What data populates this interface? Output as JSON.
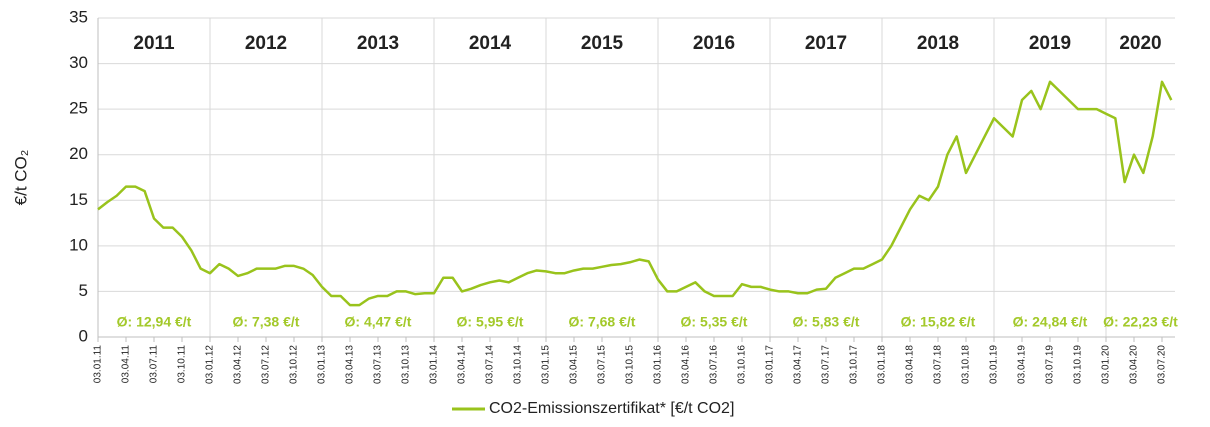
{
  "chart_data": {
    "type": "line",
    "y_label": "€/t CO₂",
    "ylim": [
      0,
      35
    ],
    "yticks": [
      0,
      5,
      10,
      15,
      20,
      25,
      30,
      35
    ],
    "grid": true,
    "x": [
      "03.01.11",
      "03.02.11",
      "03.03.11",
      "03.04.11",
      "03.05.11",
      "03.06.11",
      "03.07.11",
      "03.08.11",
      "03.09.11",
      "03.10.11",
      "03.11.11",
      "03.12.11",
      "03.01.12",
      "03.02.12",
      "03.03.12",
      "03.04.12",
      "03.05.12",
      "03.06.12",
      "03.07.12",
      "03.08.12",
      "03.09.12",
      "03.10.12",
      "03.11.12",
      "03.12.12",
      "03.01.13",
      "03.02.13",
      "03.03.13",
      "03.04.13",
      "03.05.13",
      "03.06.13",
      "03.07.13",
      "03.08.13",
      "03.09.13",
      "03.10.13",
      "03.11.13",
      "03.12.13",
      "03.01.14",
      "03.02.14",
      "03.03.14",
      "03.04.14",
      "03.05.14",
      "03.06.14",
      "03.07.14",
      "03.08.14",
      "03.09.14",
      "03.10.14",
      "03.11.14",
      "03.12.14",
      "03.01.15",
      "03.02.15",
      "03.03.15",
      "03.04.15",
      "03.05.15",
      "03.06.15",
      "03.07.15",
      "03.08.15",
      "03.09.15",
      "03.10.15",
      "03.11.15",
      "03.12.15",
      "03.01.16",
      "03.02.16",
      "03.03.16",
      "03.04.16",
      "03.05.16",
      "03.06.16",
      "03.07.16",
      "03.08.16",
      "03.09.16",
      "03.10.16",
      "03.11.16",
      "03.12.16",
      "03.01.17",
      "03.02.17",
      "03.03.17",
      "03.04.17",
      "03.05.17",
      "03.06.17",
      "03.07.17",
      "03.08.17",
      "03.09.17",
      "03.10.17",
      "03.11.17",
      "03.12.17",
      "03.01.18",
      "03.02.18",
      "03.03.18",
      "03.04.18",
      "03.05.18",
      "03.06.18",
      "03.07.18",
      "03.08.18",
      "03.09.18",
      "03.10.18",
      "03.11.18",
      "03.12.18",
      "03.01.19",
      "03.02.19",
      "03.03.19",
      "03.04.19",
      "03.05.19",
      "03.06.19",
      "03.07.19",
      "03.08.19",
      "03.09.19",
      "03.10.19",
      "03.11.19",
      "03.12.19",
      "03.01.20",
      "03.02.20",
      "03.03.20",
      "03.04.20",
      "03.05.20",
      "03.06.20",
      "03.07.20",
      "03.08.20"
    ],
    "xticks": [
      "03.01.11",
      "03.04.11",
      "03.07.11",
      "03.10.11",
      "03.01.12",
      "03.04.12",
      "03.07.12",
      "03.10.12",
      "03.01.13",
      "03.04.13",
      "03.07.13",
      "03.10.13",
      "03.01.14",
      "03.04.14",
      "03.07.14",
      "03.10.14",
      "03.01.15",
      "03.04.15",
      "03.07.15",
      "03.10.15",
      "03.01.16",
      "03.04.16",
      "03.07.16",
      "03.10.16",
      "03.01.17",
      "03.04.17",
      "03.07.17",
      "03.10.17",
      "03.01.18",
      "03.04.18",
      "03.07.18",
      "03.10.18",
      "03.01.19",
      "03.04.19",
      "03.07.19",
      "03.10.19",
      "03.01.20",
      "03.04.20",
      "03.07.20"
    ],
    "series": [
      {
        "name": "CO2-Emissionszertifikat* [€/t CO2]",
        "color": "#99c31c",
        "values": [
          14,
          14.8,
          15.5,
          16.5,
          16.5,
          16,
          13,
          12,
          12,
          11,
          9.5,
          7.5,
          7,
          8,
          7.5,
          6.7,
          7,
          7.5,
          7.5,
          7.5,
          7.8,
          7.8,
          7.5,
          6.8,
          5.5,
          4.5,
          4.5,
          3.5,
          3.5,
          4.2,
          4.5,
          4.5,
          5,
          5,
          4.7,
          4.8,
          4.8,
          6.5,
          6.5,
          5,
          5.3,
          5.7,
          6,
          6.2,
          6,
          6.5,
          7,
          7.3,
          7.2,
          7,
          7,
          7.3,
          7.5,
          7.5,
          7.7,
          7.9,
          8,
          8.2,
          8.5,
          8.3,
          6.3,
          5,
          5,
          5.5,
          6,
          5,
          4.5,
          4.5,
          4.5,
          5.8,
          5.5,
          5.5,
          5.2,
          5,
          5,
          4.8,
          4.8,
          5.2,
          5.3,
          6.5,
          7,
          7.5,
          7.5,
          8,
          8.5,
          10,
          12,
          14,
          15.5,
          15,
          16.5,
          20,
          22,
          18,
          20,
          22,
          24,
          23,
          22,
          26,
          27,
          25,
          28,
          27,
          26,
          25,
          25,
          25,
          24.5,
          24,
          17,
          20,
          18,
          22,
          28,
          26
        ]
      }
    ],
    "periods": [
      {
        "label": "2011",
        "average": "Ø: 12,94 €/t"
      },
      {
        "label": "2012",
        "average": "Ø: 7,38 €/t"
      },
      {
        "label": "2013",
        "average": "Ø: 4,47 €/t"
      },
      {
        "label": "2014",
        "average": "Ø: 5,95 €/t"
      },
      {
        "label": "2015",
        "average": "Ø: 7,68 €/t"
      },
      {
        "label": "2016",
        "average": "Ø: 5,35 €/t"
      },
      {
        "label": "2017",
        "average": "Ø: 5,83 €/t"
      },
      {
        "label": "2018",
        "average": "Ø: 15,82 €/t"
      },
      {
        "label": "2019",
        "average": "Ø: 24,84 €/t"
      },
      {
        "label": "2020",
        "average": "Ø: 22,23 €/t"
      }
    ]
  }
}
